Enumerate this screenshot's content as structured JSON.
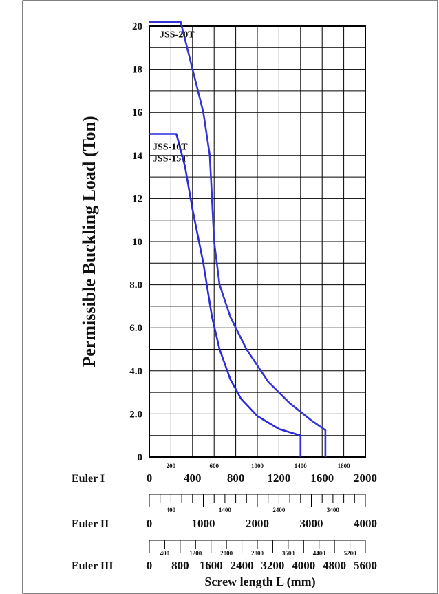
{
  "chart_data": {
    "type": "line",
    "title": "",
    "ylabel": "Permissible Buckling Load (Ton)",
    "xlabel": "Screw length L (mm)",
    "ylim": [
      0,
      20
    ],
    "y_tick_labels": [
      "0",
      "2.0",
      "4.0",
      "6.0",
      "8.0",
      "10",
      "12",
      "14",
      "16",
      "18",
      "20"
    ],
    "y_ticks": [
      0,
      2,
      4,
      6,
      8,
      10,
      12,
      14,
      16,
      18,
      20
    ],
    "grid": true,
    "x_scales": [
      {
        "name": "Euler I",
        "range": [
          0,
          2000
        ],
        "major_ticks": [
          0,
          400,
          800,
          1200,
          1600,
          2000
        ],
        "major_labels": [
          "0",
          "400",
          "800",
          "1200",
          "1600",
          "2000"
        ],
        "minor_labels": [
          "200",
          "600",
          "1000",
          "1400",
          "1800"
        ],
        "minor_values": [
          200,
          600,
          1000,
          1400,
          1800
        ]
      },
      {
        "name": "Euler II",
        "range": [
          0,
          4000
        ],
        "major_ticks": [
          0,
          1000,
          2000,
          3000,
          4000
        ],
        "major_labels": [
          "0",
          "1000",
          "2000",
          "3000",
          "4000"
        ],
        "minor_labels": [
          "400",
          "1400",
          "2400",
          "3400"
        ],
        "minor_values": [
          400,
          1400,
          2400,
          3400
        ],
        "tick_step": 200
      },
      {
        "name": "Euler III",
        "range": [
          0,
          5600
        ],
        "major_ticks": [
          0,
          800,
          1600,
          2400,
          3200,
          4000,
          4800,
          5600
        ],
        "major_labels": [
          "0",
          "800",
          "1600",
          "2400",
          "3200",
          "4000",
          "4800",
          "5600"
        ],
        "minor_labels": [
          "400",
          "1200",
          "2000",
          "2800",
          "3600",
          "4400",
          "5200"
        ],
        "minor_values": [
          400,
          1200,
          2000,
          2800,
          3600,
          4400,
          5200
        ],
        "tick_step": 400
      }
    ],
    "series": [
      {
        "name": "JSS-20T",
        "label_lines": [
          "JSS-20T"
        ],
        "color": "#3333d6",
        "x": [
          0,
          290,
          400,
          500,
          560,
          580,
          600,
          650,
          750,
          900,
          1100,
          1300,
          1500,
          1630,
          1630
        ],
        "y": [
          20.2,
          20.2,
          18.0,
          16.0,
          14.0,
          12.0,
          10.0,
          8.0,
          6.5,
          5.0,
          3.5,
          2.5,
          1.7,
          1.25,
          0
        ]
      },
      {
        "name": "JSS-10T / JSS-15T",
        "label_lines": [
          "JSS-10T",
          "JSS-15T"
        ],
        "color": "#2a2ae0",
        "x": [
          0,
          250,
          330,
          400,
          500,
          580,
          650,
          750,
          850,
          1000,
          1200,
          1400,
          1400
        ],
        "y": [
          15.0,
          15.0,
          13.5,
          11.5,
          9.0,
          6.5,
          5.0,
          3.6,
          2.7,
          1.9,
          1.3,
          1.0,
          0
        ]
      }
    ]
  }
}
